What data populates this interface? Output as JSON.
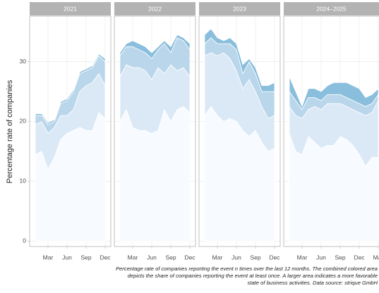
{
  "chart_data": [
    {
      "type": "area",
      "title": "2021",
      "categories": [
        null,
        null,
        "Mar",
        null,
        null,
        "Jun",
        null,
        null,
        "Sep",
        null,
        null,
        "Dec"
      ],
      "series": [
        {
          "color": "#f7fbff",
          "values": [
            14.5,
            15,
            12,
            14,
            17,
            18,
            18.5,
            19,
            18.5,
            18.5,
            21.5,
            20.5
          ]
        },
        {
          "color": "#dbe9f6",
          "values": [
            5,
            5,
            6,
            5,
            4,
            3,
            3.5,
            6,
            7.5,
            8,
            6.5,
            5.5
          ]
        },
        {
          "color": "#bad6eb",
          "values": [
            1.5,
            1,
            1.5,
            1,
            2,
            2.5,
            3,
            3,
            2.5,
            2.5,
            3,
            4
          ]
        },
        {
          "color": "#89bedc",
          "values": [
            0.3,
            0.3,
            0.3,
            0.3,
            0.3,
            0.3,
            0.3,
            0.3,
            0.3,
            0.3,
            0.3,
            0.5
          ]
        }
      ],
      "ylim": [
        -0.9,
        37.6
      ],
      "yticks": [
        0,
        10,
        20,
        30
      ],
      "grid": true
    },
    {
      "type": "area",
      "title": "2022",
      "categories": [
        null,
        null,
        "Mar",
        null,
        null,
        "Jun",
        null,
        null,
        "Sep",
        null,
        null,
        "Dec"
      ],
      "series": [
        {
          "color": "#f7fbff",
          "values": [
            20,
            22,
            19,
            18.5,
            18.5,
            18,
            18.5,
            22,
            20,
            22,
            22.5,
            21.5
          ]
        },
        {
          "color": "#dbe9f6",
          "values": [
            7.5,
            7.5,
            10,
            10.5,
            10,
            9,
            10.5,
            6,
            9.5,
            6.5,
            6.5,
            6
          ]
        },
        {
          "color": "#bad6eb",
          "values": [
            3.5,
            3,
            3.5,
            3,
            3,
            3.5,
            3,
            5,
            2,
            5.5,
            4.5,
            4.5
          ]
        },
        {
          "color": "#89bedc",
          "values": [
            0.5,
            0.5,
            1,
            1,
            1,
            1,
            0.5,
            0.5,
            1,
            0.5,
            0.5,
            1
          ]
        }
      ],
      "ylim": [
        -0.9,
        37.6
      ],
      "yticks": [
        0,
        10,
        20,
        30
      ],
      "grid": true
    },
    {
      "type": "area",
      "title": "2023",
      "categories": [
        null,
        null,
        "Mar",
        null,
        null,
        "Jun",
        null,
        null,
        "Sep",
        null,
        null,
        "Dec"
      ],
      "series": [
        {
          "color": "#f7fbff",
          "values": [
            21,
            22.5,
            21,
            20,
            20.5,
            20,
            18.5,
            17.5,
            18.5,
            16.5,
            15,
            15.5
          ]
        },
        {
          "color": "#dbe9f6",
          "values": [
            10,
            9,
            10,
            11.5,
            10,
            8.5,
            7,
            9.5,
            6.5,
            6,
            5.5,
            5.5
          ]
        },
        {
          "color": "#bad6eb",
          "values": [
            2,
            2.5,
            2,
            1.5,
            2.5,
            3.5,
            2.5,
            3,
            3,
            2.5,
            4.5,
            4
          ]
        },
        {
          "color": "#89bedc",
          "values": [
            1.5,
            1.5,
            1,
            0.5,
            1,
            1,
            1.5,
            0.5,
            1,
            1,
            1,
            1.5
          ]
        }
      ],
      "ylim": [
        -0.9,
        37.6
      ],
      "yticks": [
        0,
        10,
        20,
        30
      ],
      "grid": true
    },
    {
      "type": "area",
      "title": "2024–2025",
      "categories": [
        null,
        null,
        "Mar",
        null,
        null,
        "Jun",
        null,
        null,
        "Sep",
        null,
        null,
        "Dec",
        null,
        null,
        "Mar"
      ],
      "series": [
        {
          "color": "#f7fbff",
          "values": [
            18,
            15,
            14.5,
            17.5,
            16.5,
            15.5,
            16,
            16,
            17.5,
            17,
            16,
            14.5,
            12.5,
            14,
            14
          ]
        },
        {
          "color": "#dbe9f6",
          "values": [
            4.5,
            6,
            6,
            4.5,
            6,
            6.5,
            7,
            7,
            5.5,
            5.5,
            6,
            7,
            8.5,
            7.5,
            9.5
          ]
        },
        {
          "color": "#bad6eb",
          "values": [
            2.5,
            2.5,
            1.5,
            2,
            1.5,
            1.5,
            1.5,
            1.5,
            1.5,
            1.5,
            1.5,
            1.5,
            1.5,
            1.5,
            1
          ]
        },
        {
          "color": "#89bedc",
          "values": [
            2.5,
            1.5,
            0.5,
            1.5,
            1.5,
            1.5,
            1.5,
            2,
            2,
            2.5,
            2.5,
            2.5,
            1.5,
            1.5,
            1
          ]
        }
      ],
      "ylim": [
        -0.9,
        37.6
      ],
      "yticks": [
        0,
        10,
        20,
        30
      ],
      "grid": true
    }
  ],
  "y_label": "Percentage rate of companies",
  "caption": [
    "Percentage rate of companies reporting the event n times over the last 12 months. The combined colored area",
    "depicts the share of companies reporting the event at least once. A larger area indicates a more favorable",
    "state of business activities. Data source: strique GmbH"
  ]
}
